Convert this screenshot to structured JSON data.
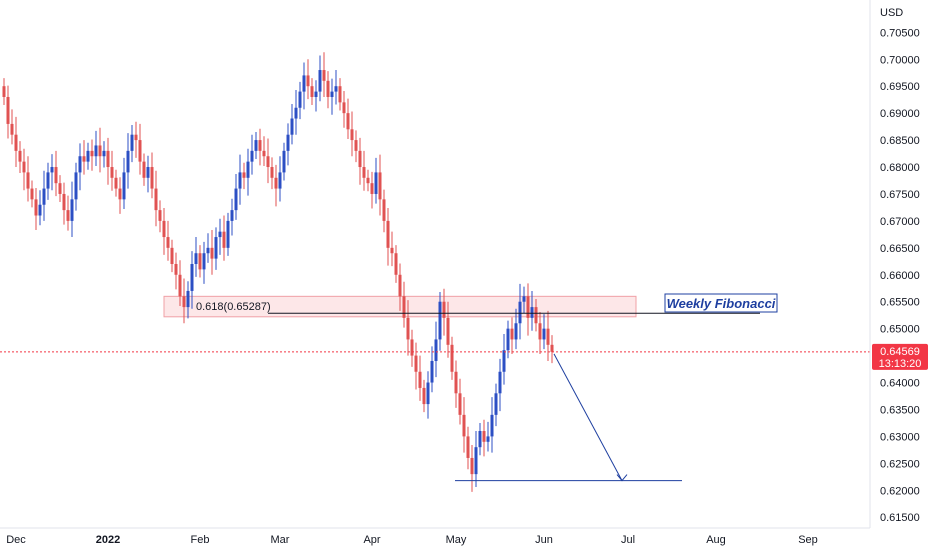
{
  "chart_data": {
    "type": "candlestick",
    "currency": "USD",
    "y_ticks": [
      "0.61500",
      "0.62000",
      "0.62500",
      "0.63000",
      "0.63500",
      "0.64000",
      "0.64500",
      "0.65000",
      "0.65500",
      "0.66000",
      "0.66500",
      "0.67000",
      "0.67500",
      "0.68000",
      "0.68500",
      "0.69000",
      "0.69500",
      "0.70000",
      "0.70500"
    ],
    "ylim": [
      0.613,
      0.711
    ],
    "x_ticks": [
      {
        "label": "Dec",
        "bold": false,
        "index": 3
      },
      {
        "label": "2022",
        "bold": true,
        "index": 26
      },
      {
        "label": "Feb",
        "bold": false,
        "index": 49
      },
      {
        "label": "Mar",
        "bold": false,
        "index": 69
      },
      {
        "label": "Apr",
        "bold": false,
        "index": 92
      },
      {
        "label": "May",
        "bold": false,
        "index": 113
      },
      {
        "label": "Jun",
        "bold": false,
        "index": 135
      },
      {
        "label": "Jul",
        "bold": false,
        "index": 156
      },
      {
        "label": "Aug",
        "bold": false,
        "index": 178
      },
      {
        "label": "Sep",
        "bold": false,
        "index": 201
      }
    ],
    "current_price": {
      "value": "0.64569",
      "timer": "13:13:20",
      "price": 0.64569
    },
    "fibonacci": {
      "label": "0.618(0.65287)",
      "level": 0.65287,
      "zone_low": 0.6522,
      "zone_high": 0.656,
      "title": "Weekly Fibonacci"
    },
    "target_level": 0.6218,
    "closes": [
      0.693,
      0.688,
      0.686,
      0.683,
      0.681,
      0.679,
      0.676,
      0.674,
      0.671,
      0.673,
      0.676,
      0.679,
      0.68,
      0.677,
      0.675,
      0.672,
      0.67,
      0.674,
      0.679,
      0.682,
      0.681,
      0.683,
      0.682,
      0.684,
      0.682,
      0.683,
      0.68,
      0.678,
      0.676,
      0.674,
      0.679,
      0.683,
      0.686,
      0.685,
      0.681,
      0.678,
      0.68,
      0.676,
      0.672,
      0.67,
      0.667,
      0.665,
      0.662,
      0.66,
      0.656,
      0.654,
      0.657,
      0.662,
      0.664,
      0.661,
      0.664,
      0.665,
      0.663,
      0.667,
      0.668,
      0.665,
      0.67,
      0.672,
      0.676,
      0.679,
      0.678,
      0.681,
      0.683,
      0.685,
      0.683,
      0.682,
      0.68,
      0.678,
      0.676,
      0.679,
      0.683,
      0.686,
      0.689,
      0.691,
      0.694,
      0.697,
      0.695,
      0.693,
      0.694,
      0.698,
      0.696,
      0.693,
      0.694,
      0.695,
      0.692,
      0.69,
      0.687,
      0.685,
      0.683,
      0.68,
      0.678,
      0.677,
      0.675,
      0.679,
      0.674,
      0.67,
      0.665,
      0.664,
      0.66,
      0.656,
      0.652,
      0.648,
      0.645,
      0.642,
      0.639,
      0.636,
      0.64,
      0.644,
      0.648,
      0.655,
      0.652,
      0.647,
      0.642,
      0.638,
      0.634,
      0.63,
      0.626,
      0.623,
      0.628,
      0.631,
      0.629,
      0.63,
      0.634,
      0.638,
      0.642,
      0.646,
      0.65,
      0.648,
      0.651,
      0.655,
      0.656,
      0.652,
      0.654,
      0.651,
      0.648,
      0.65,
      0.647,
      0.6457
    ]
  }
}
